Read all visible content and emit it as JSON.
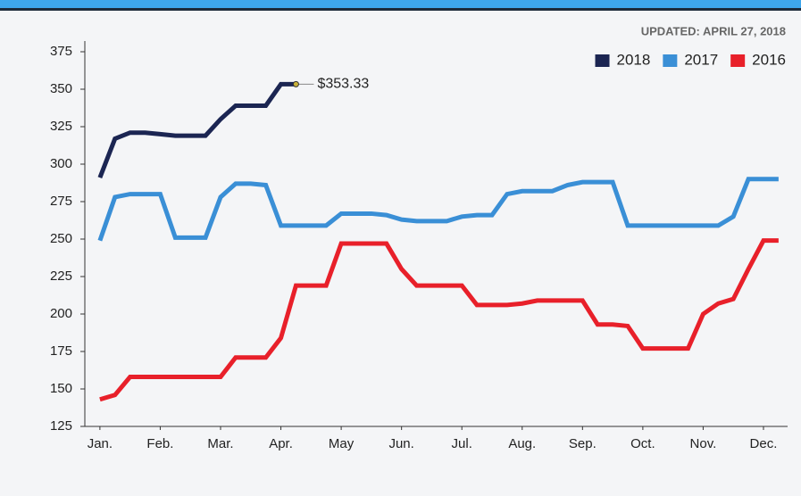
{
  "chart_data": {
    "type": "line",
    "subtitle": "UPDATED: APRIL 27, 2018",
    "x": [
      0,
      0.25,
      0.5,
      0.75,
      1,
      1.25,
      1.5,
      1.75,
      2,
      2.25,
      2.5,
      2.75,
      3,
      3.25,
      3.5,
      3.75,
      4,
      4.25,
      4.5,
      4.75,
      5,
      5.25,
      5.5,
      5.75,
      6,
      6.25,
      6.5,
      6.75,
      7,
      7.25,
      7.5,
      7.75,
      8,
      8.25,
      8.5,
      8.75,
      9,
      9.25,
      9.5,
      9.75,
      10,
      10.25,
      10.5,
      10.75,
      11,
      11.25
    ],
    "xlim": [
      -0.25,
      11.4
    ],
    "xticks": [
      {
        "value": 0,
        "label": "Jan."
      },
      {
        "value": 1,
        "label": "Feb."
      },
      {
        "value": 2,
        "label": "Mar."
      },
      {
        "value": 3,
        "label": "Apr."
      },
      {
        "value": 4,
        "label": "May"
      },
      {
        "value": 5,
        "label": "Jun."
      },
      {
        "value": 6,
        "label": "Jul."
      },
      {
        "value": 7,
        "label": "Aug."
      },
      {
        "value": 8,
        "label": "Sep."
      },
      {
        "value": 9,
        "label": "Oct."
      },
      {
        "value": 10,
        "label": "Nov."
      },
      {
        "value": 11,
        "label": "Dec."
      }
    ],
    "ylim": [
      125,
      375
    ],
    "yticks": [
      125,
      150,
      175,
      200,
      225,
      250,
      275,
      300,
      325,
      350,
      375
    ],
    "legend": "top-right",
    "series": [
      {
        "name": "2018",
        "color": "#1b2552",
        "values": [
          291,
          317,
          321,
          321,
          320,
          319,
          319,
          319,
          330,
          339,
          339,
          339,
          353.33,
          353.33,
          null,
          null,
          null,
          null,
          null,
          null,
          null,
          null,
          null,
          null,
          null,
          null,
          null,
          null,
          null,
          null,
          null,
          null,
          null,
          null,
          null,
          null,
          null,
          null,
          null,
          null,
          null,
          null,
          null,
          null,
          null,
          null
        ],
        "value_labels": [
          null,
          null,
          null,
          null,
          null,
          null,
          null,
          null,
          null,
          null,
          null,
          null,
          null,
          "$353.33",
          null,
          null,
          null,
          null,
          null,
          null,
          null,
          null,
          null,
          null,
          null,
          null,
          null,
          null,
          null,
          null,
          null,
          null,
          null,
          null,
          null,
          null,
          null,
          null,
          null,
          null,
          null,
          null,
          null,
          null,
          null,
          null
        ]
      },
      {
        "name": "2017",
        "color": "#3a8fd6",
        "values": [
          249,
          278,
          280,
          280,
          280,
          251,
          251,
          251,
          278,
          287,
          287,
          286,
          259,
          259,
          259,
          259,
          267,
          267,
          267,
          266,
          263,
          262,
          262,
          262,
          265,
          266,
          266,
          280,
          282,
          282,
          282,
          286,
          288,
          288,
          288,
          259,
          259,
          259,
          259,
          259,
          259,
          259,
          265,
          290,
          290,
          290
        ]
      },
      {
        "name": "2016",
        "color": "#e8202a",
        "values": [
          143,
          146,
          158,
          158,
          158,
          158,
          158,
          158,
          158,
          171,
          171,
          171,
          184,
          219,
          219,
          219,
          247,
          247,
          247,
          247,
          230,
          219,
          219,
          219,
          219,
          206,
          206,
          206,
          207,
          209,
          209,
          209,
          209,
          193,
          193,
          192,
          177,
          177,
          177,
          177,
          200,
          207,
          210,
          230,
          249,
          249
        ]
      }
    ]
  }
}
